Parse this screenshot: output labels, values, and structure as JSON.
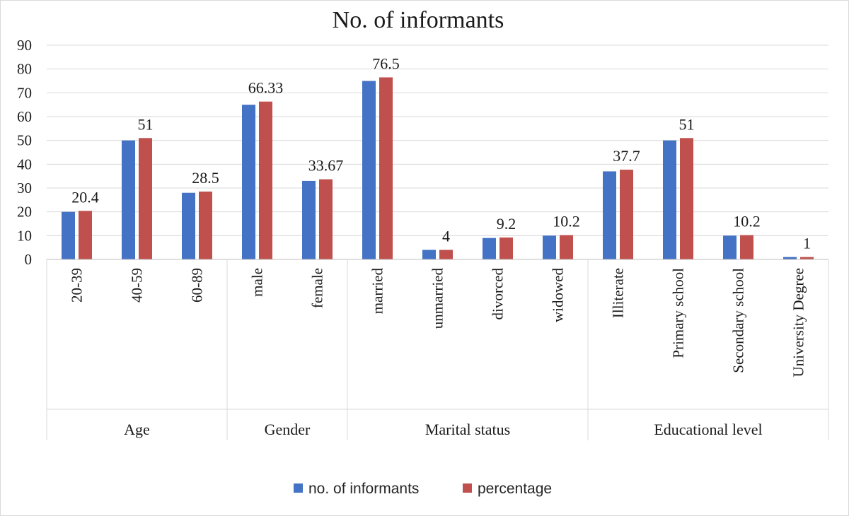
{
  "chart_data": {
    "type": "bar",
    "title": "No. of informants",
    "ylim": [
      0,
      90
    ],
    "yticks": [
      "0",
      "10",
      "20",
      "30",
      "40",
      "50",
      "60",
      "70",
      "80",
      "90"
    ],
    "grid": true,
    "legend_position": "bottom",
    "groups": [
      {
        "label": "Age",
        "categories": [
          "20-39",
          "40-59",
          "60-89"
        ]
      },
      {
        "label": "Gender",
        "categories": [
          "male",
          "female"
        ]
      },
      {
        "label": "Marital status",
        "categories": [
          "married",
          "unmarried",
          "divorced",
          "widowed"
        ]
      },
      {
        "label": "Educational level",
        "categories": [
          "Illiterate",
          "Primary school",
          "Secondary school",
          "University Degree"
        ]
      }
    ],
    "categories": [
      "20-39",
      "40-59",
      "60-89",
      "male",
      "female",
      "married",
      "unmarried",
      "divorced",
      "widowed",
      "Illiterate",
      "Primary school",
      "Secondary school",
      "University Degree"
    ],
    "series": [
      {
        "name": "no. of informants",
        "color": "#4472C4",
        "values": [
          20,
          50,
          28,
          65,
          33,
          75,
          4,
          9,
          10,
          37,
          50,
          10,
          1
        ]
      },
      {
        "name": "percentage",
        "color": "#C0504D",
        "values": [
          20.4,
          51,
          28.5,
          66.33,
          33.67,
          76.5,
          4,
          9.2,
          10.2,
          37.7,
          51,
          10.2,
          1
        ]
      }
    ],
    "data_labels": [
      "20.4",
      "51",
      "28.5",
      "66.33",
      "33.67",
      "76.5",
      "4",
      "9.2",
      "10.2",
      "37.7",
      "51",
      "10.2",
      "1"
    ]
  }
}
